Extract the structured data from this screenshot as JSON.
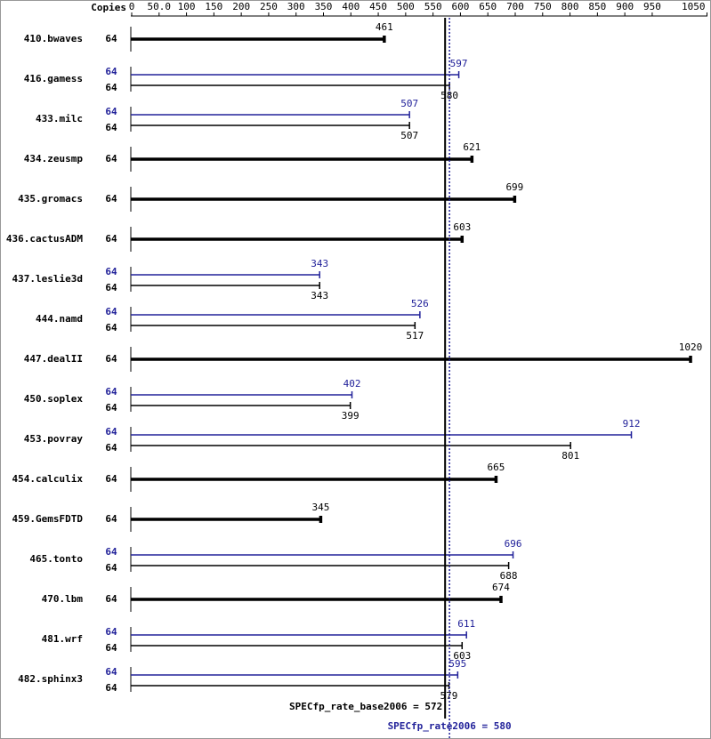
{
  "chart_data": {
    "type": "bar",
    "orientation": "horizontal",
    "copies_label": "Copies",
    "categories": [
      "410.bwaves",
      "416.gamess",
      "433.milc",
      "434.zeusmp",
      "435.gromacs",
      "436.cactusADM",
      "437.leslie3d",
      "444.namd",
      "447.dealII",
      "450.soplex",
      "453.povray",
      "454.calculix",
      "459.GemsFDTD",
      "465.tonto",
      "470.lbm",
      "481.wrf",
      "482.sphinx3"
    ],
    "series": [
      {
        "color": "#22229a",
        "values": [
          null,
          597,
          507,
          null,
          null,
          null,
          343,
          526,
          null,
          402,
          912,
          null,
          null,
          696,
          null,
          611,
          595
        ],
        "copies": [
          null,
          64,
          64,
          null,
          null,
          null,
          64,
          64,
          null,
          64,
          64,
          null,
          null,
          64,
          null,
          64,
          64
        ]
      },
      {
        "color": "#000000",
        "values": [
          461,
          580,
          507,
          621,
          699,
          603,
          343,
          517,
          1020,
          399,
          801,
          665,
          345,
          688,
          674,
          603,
          579
        ],
        "copies": [
          64,
          64,
          64,
          64,
          64,
          64,
          64,
          64,
          64,
          64,
          64,
          64,
          64,
          64,
          64,
          64,
          64
        ]
      }
    ],
    "xlim": [
      0,
      1050
    ],
    "xticks": [
      0,
      {
        "value": 50,
        "label": "50.0"
      },
      100,
      150,
      200,
      250,
      300,
      350,
      400,
      450,
      500,
      550,
      600,
      650,
      700,
      750,
      800,
      850,
      900,
      950,
      1050
    ],
    "reference_lines": [
      {
        "label": "SPECfp_rate_base2006 = 572",
        "value": 572,
        "color": "#000000",
        "dashed": false
      },
      {
        "label": "SPECfp_rate2006 = 580",
        "value": 580,
        "color": "#22229a",
        "dashed": true
      }
    ]
  }
}
